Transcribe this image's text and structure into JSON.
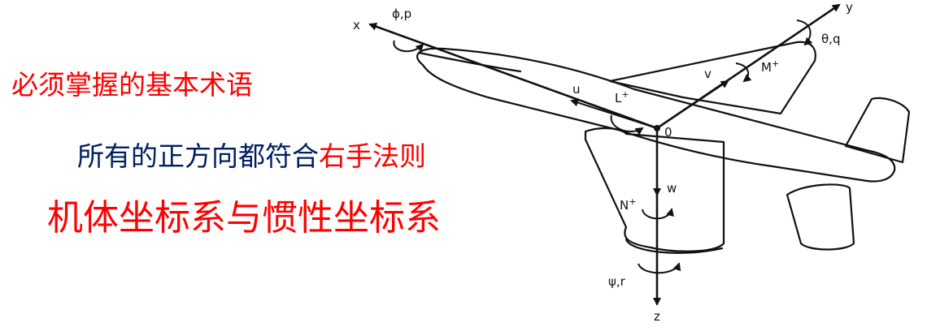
{
  "heading": {
    "text": "必须掌握的基本术语",
    "color": "#ff0000"
  },
  "rule_line": {
    "prefix": "所有的正方向都符合",
    "prefix_color": "#002060",
    "highlight": "右手法则",
    "highlight_color": "#ff0000"
  },
  "frames_line": {
    "text": "机体坐标系与惯性坐标系",
    "color": "#ff0000"
  },
  "diagram_labels": {
    "x_axis": "x",
    "y_axis": "y",
    "z_axis": "z",
    "roll": "ϕ,p",
    "pitch": "θ,q",
    "yaw": "ψ,r",
    "origin": "0",
    "u": "u",
    "v": "v",
    "w": "w",
    "L_moment": "L",
    "M_moment": "M",
    "N_moment": "N",
    "plus": "+"
  }
}
